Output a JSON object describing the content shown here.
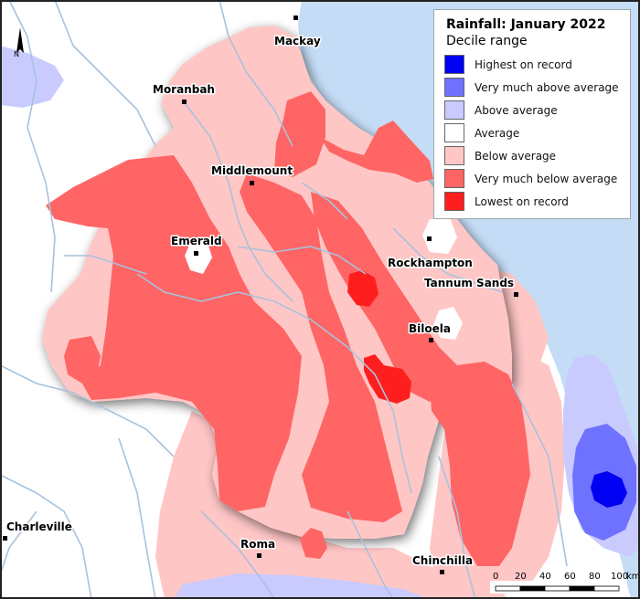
{
  "title": "Rainfall: January 2022",
  "subtitle": "Decile range",
  "north_label": "N",
  "scale": {
    "ticks": [
      "0",
      "20",
      "40",
      "60",
      "80",
      "100"
    ],
    "unit": "km"
  },
  "colors": {
    "sea": "#c4dcf5",
    "highest_on_record": "#0000f2",
    "very_much_above_average": "#6f72ff",
    "above_average": "#c9cbff",
    "average": "#ffffff",
    "below_average": "#ffc6c6",
    "very_much_below_average": "#ff6565",
    "lowest_on_record": "#ff1e1e",
    "rivers": "#a8c2dc"
  },
  "legend": [
    {
      "label": "Highest on record",
      "color": "#0000f2"
    },
    {
      "label": "Very much above average",
      "color": "#6f72ff"
    },
    {
      "label": "Above average",
      "color": "#c9cbff"
    },
    {
      "label": "Average",
      "color": "#ffffff"
    },
    {
      "label": "Below average",
      "color": "#ffc6c6"
    },
    {
      "label": "Very much below average",
      "color": "#ff6565"
    },
    {
      "label": "Lowest on record",
      "color": "#ff1e1e"
    }
  ],
  "towns": {
    "mackay": "Mackay",
    "moranbah": "Moranbah",
    "middlemount": "Middlemount",
    "emerald": "Emerald",
    "rockhampton": "Rockhampton",
    "tannum_sands": "Tannum Sands",
    "biloela": "Biloela",
    "charleville": "Charleville",
    "roma": "Roma",
    "chinchilla": "Chinchilla"
  }
}
